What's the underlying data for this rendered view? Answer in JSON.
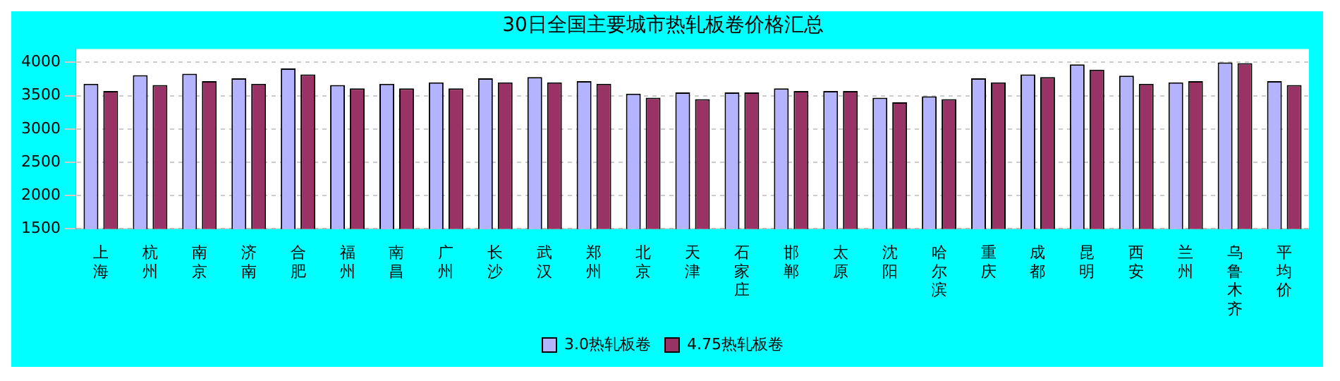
{
  "chart_data": {
    "type": "bar",
    "title": "30日全国主要城市热轧板卷价格汇总",
    "categories": [
      "上海",
      "杭州",
      "南京",
      "济南",
      "合肥",
      "福州",
      "南昌",
      "广州",
      "长沙",
      "武汉",
      "郑州",
      "北京",
      "天津",
      "石家庄",
      "邯郸",
      "太原",
      "沈阳",
      "哈尔滨",
      "重庆",
      "成都",
      "昆明",
      "西安",
      "兰州",
      "乌鲁木齐",
      "平均价"
    ],
    "series": [
      {
        "name": "3.0热轧板卷",
        "color": "#b3b3ff",
        "values": [
          3680,
          3810,
          3830,
          3760,
          3910,
          3660,
          3680,
          3700,
          3760,
          3780,
          3720,
          3530,
          3550,
          3550,
          3610,
          3570,
          3470,
          3490,
          3760,
          3820,
          3970,
          3800,
          3700,
          4000,
          3720
        ]
      },
      {
        "name": "4.75热轧板卷",
        "color": "#993366",
        "values": [
          3570,
          3660,
          3720,
          3680,
          3820,
          3610,
          3610,
          3610,
          3700,
          3700,
          3680,
          3470,
          3450,
          3550,
          3570,
          3570,
          3400,
          3450,
          3700,
          3780,
          3890,
          3680,
          3720,
          3990,
          3660
        ]
      }
    ],
    "ylim": [
      1500,
      4200
    ],
    "yticks": [
      1500,
      2000,
      2500,
      3000,
      3500,
      4000
    ],
    "grid": "y",
    "legend": "bottom"
  }
}
